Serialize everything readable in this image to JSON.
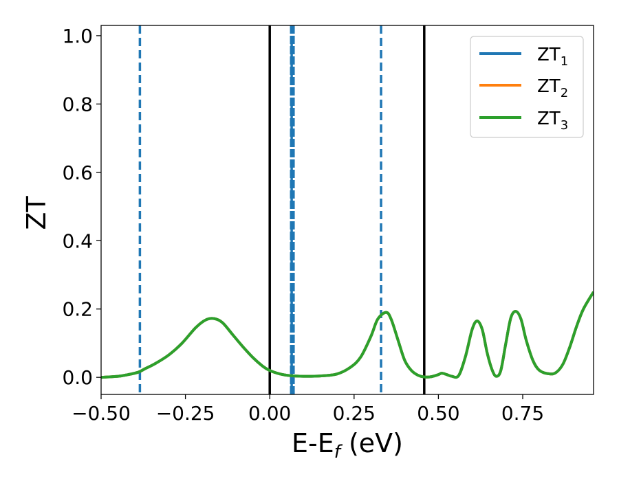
{
  "chart_data": {
    "type": "line",
    "xlabel_main": "E-E",
    "xlabel_sub": "f",
    "xlabel_unit": " (eV)",
    "ylabel": "ZT",
    "xlim": [
      -0.5,
      0.96
    ],
    "ylim": [
      -0.05,
      1.03
    ],
    "x_ticks": [
      -0.5,
      -0.25,
      0.0,
      0.25,
      0.5,
      0.75
    ],
    "x_tick_labels": [
      "−0.50",
      "−0.25",
      "0.00",
      "0.25",
      "0.50",
      "0.75"
    ],
    "y_ticks": [
      0.0,
      0.2,
      0.4,
      0.6,
      0.8,
      1.0
    ],
    "y_tick_labels": [
      "0.0",
      "0.2",
      "0.4",
      "0.6",
      "0.8",
      "1.0"
    ],
    "legend_position": "upper-right",
    "series": [
      {
        "name_main": "ZT",
        "name_sub": "1",
        "color": "#1f77b4"
      },
      {
        "name_main": "ZT",
        "name_sub": "2",
        "color": "#ff7f0e"
      },
      {
        "name_main": "ZT",
        "name_sub": "3",
        "color": "#2ca02c",
        "x": [
          -0.5,
          -0.45,
          -0.42,
          -0.39,
          -0.37,
          -0.34,
          -0.3,
          -0.26,
          -0.22,
          -0.19,
          -0.165,
          -0.14,
          -0.11,
          -0.08,
          -0.05,
          -0.02,
          0.0,
          0.03,
          0.06,
          0.1,
          0.15,
          0.2,
          0.24,
          0.27,
          0.3,
          0.32,
          0.345,
          0.36,
          0.38,
          0.4,
          0.42,
          0.44,
          0.46,
          0.48,
          0.5,
          0.51,
          0.525,
          0.54,
          0.56,
          0.58,
          0.6,
          0.615,
          0.63,
          0.645,
          0.66,
          0.672,
          0.685,
          0.7,
          0.715,
          0.73,
          0.745,
          0.76,
          0.78,
          0.8,
          0.83,
          0.85,
          0.87,
          0.89,
          0.91,
          0.93,
          0.96
        ],
        "y": [
          0.0,
          0.003,
          0.008,
          0.015,
          0.025,
          0.04,
          0.065,
          0.1,
          0.145,
          0.168,
          0.172,
          0.16,
          0.125,
          0.09,
          0.058,
          0.032,
          0.02,
          0.01,
          0.005,
          0.003,
          0.004,
          0.01,
          0.03,
          0.06,
          0.12,
          0.17,
          0.19,
          0.17,
          0.11,
          0.05,
          0.02,
          0.006,
          0.001,
          0.002,
          0.008,
          0.012,
          0.008,
          0.003,
          0.005,
          0.06,
          0.14,
          0.165,
          0.14,
          0.07,
          0.02,
          0.003,
          0.02,
          0.1,
          0.175,
          0.193,
          0.17,
          0.11,
          0.05,
          0.02,
          0.01,
          0.015,
          0.04,
          0.09,
          0.15,
          0.2,
          0.25
        ]
      }
    ],
    "vlines_solid": [
      0.0,
      0.458
    ],
    "vlines_dashed": [
      -0.385,
      0.065,
      0.33
    ],
    "vline_thick_dashed": [
      0.067
    ]
  }
}
